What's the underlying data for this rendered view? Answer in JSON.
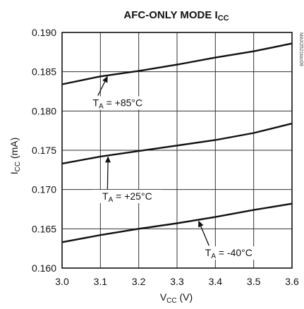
{
  "chart_data": {
    "type": "line",
    "title": "AFC-ONLY MODE I",
    "title_sub": "CC",
    "xlabel_main": "V",
    "xlabel_sub": "CC",
    "xlabel_unit": " (V)",
    "ylabel_main": "I",
    "ylabel_sub": "CC",
    "ylabel_unit": " (mA)",
    "xlim": [
      3.0,
      3.6
    ],
    "ylim": [
      0.16,
      0.19
    ],
    "xticks": [
      "3.0",
      "3.1",
      "3.2",
      "3.3",
      "3.4",
      "3.5",
      "3.6"
    ],
    "yticks": [
      "0.160",
      "0.165",
      "0.170",
      "0.175",
      "0.180",
      "0.185",
      "0.190"
    ],
    "grid": true,
    "watermark": "MAX2521toc09",
    "series": [
      {
        "name": "T_A = +85°C",
        "x": [
          3.0,
          3.1,
          3.2,
          3.3,
          3.4,
          3.5,
          3.6
        ],
        "values": [
          0.1834,
          0.1844,
          0.1851,
          0.1859,
          0.1868,
          0.1876,
          0.1886
        ]
      },
      {
        "name": "T_A = +25°C",
        "x": [
          3.0,
          3.1,
          3.2,
          3.3,
          3.4,
          3.5,
          3.6
        ],
        "values": [
          0.1733,
          0.1742,
          0.1749,
          0.1756,
          0.1763,
          0.1772,
          0.1784
        ]
      },
      {
        "name": "T_A = -40°C",
        "x": [
          3.0,
          3.1,
          3.2,
          3.3,
          3.4,
          3.5,
          3.6
        ],
        "values": [
          0.1633,
          0.1642,
          0.165,
          0.1657,
          0.1665,
          0.1674,
          0.1682
        ]
      }
    ],
    "annotations": [
      {
        "label_main": "T",
        "label_sub": "A",
        "label_rest": " = +85°C",
        "series": 0,
        "point_x": 3.12,
        "text_at": [
          3.145,
          0.1807
        ]
      },
      {
        "label_main": "T",
        "label_sub": "A",
        "label_rest": " = +25°C",
        "series": 1,
        "point_x": 3.12,
        "text_at": [
          3.17,
          0.1688
        ]
      },
      {
        "label_main": "T",
        "label_sub": "A",
        "label_rest": " = -40°C",
        "series": 2,
        "point_x": 3.355,
        "text_at": [
          3.435,
          0.1616
        ]
      }
    ]
  }
}
